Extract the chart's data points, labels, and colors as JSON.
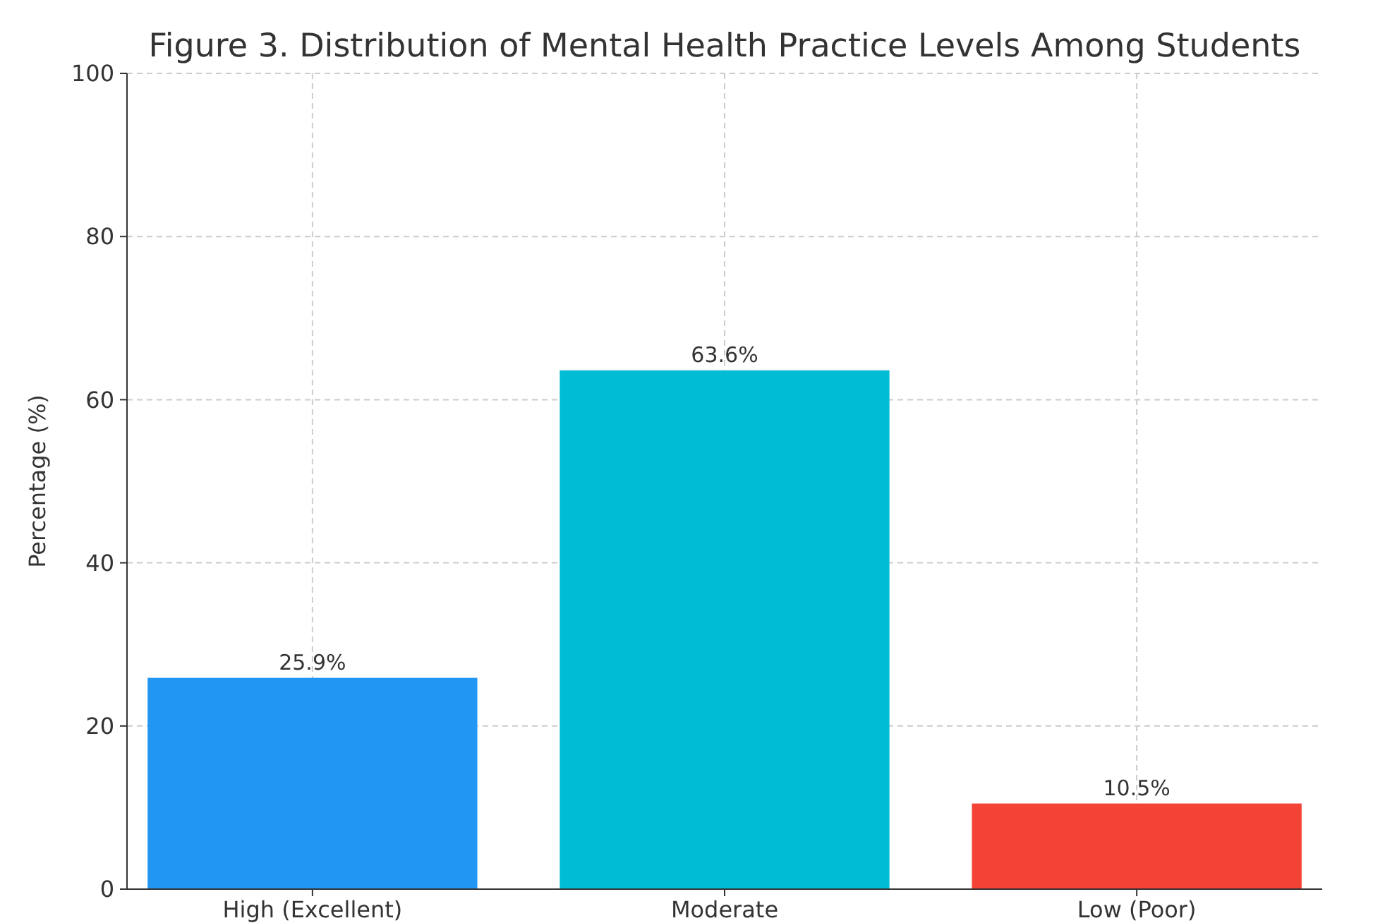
{
  "chart_data": {
    "type": "bar",
    "title": "Figure 3. Distribution of Mental Health Practice Levels Among Students",
    "ylabel": "Percentage (%)",
    "categories": [
      "High (Excellent)",
      "Moderate",
      "Low (Poor)"
    ],
    "values": [
      25.9,
      63.6,
      10.5
    ],
    "colors": [
      "#2196f3",
      "#00bcd4",
      "#f44336"
    ],
    "value_labels": [
      "25.9%",
      "63.6%",
      "10.5%"
    ],
    "ylim": [
      0,
      100
    ],
    "yticks": [
      0,
      20,
      40,
      60,
      80,
      100
    ],
    "grid": true
  }
}
